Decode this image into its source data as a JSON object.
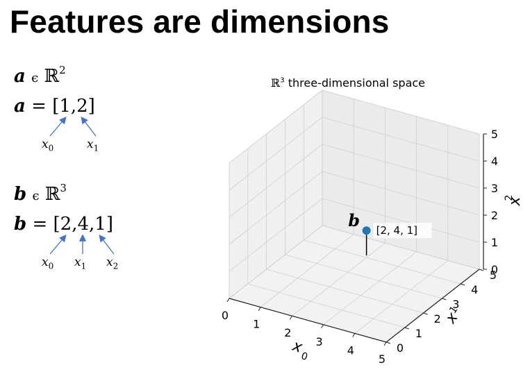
{
  "title": "Features are dimensions",
  "vector_a": {
    "set_line": {
      "name": "a",
      "in": "ϵ",
      "space": "ℝ",
      "dim": "2"
    },
    "value_line": {
      "name": "a",
      "eq": "=",
      "value": "[1,2]"
    },
    "labels": [
      {
        "var": "x",
        "sub": "0"
      },
      {
        "var": "x",
        "sub": "1"
      }
    ]
  },
  "vector_b": {
    "set_line": {
      "name": "b",
      "in": "ϵ",
      "space": "ℝ",
      "dim": "3"
    },
    "value_line": {
      "name": "b",
      "eq": "=",
      "value": "[2,4,1]"
    },
    "labels": [
      {
        "var": "x",
        "sub": "0"
      },
      {
        "var": "x",
        "sub": "1"
      },
      {
        "var": "x",
        "sub": "2"
      }
    ]
  },
  "plot": {
    "title_space": "ℝ",
    "title_dim": "3",
    "title_text": "three-dimensional space",
    "x_ticks": [
      "0",
      "1",
      "2",
      "3",
      "4",
      "5"
    ],
    "y_ticks": [
      "0",
      "1",
      "2",
      "3",
      "4",
      "5"
    ],
    "z_ticks": [
      "0",
      "1",
      "2",
      "3",
      "4",
      "5"
    ],
    "x_label": "x",
    "x_label_sub": "0",
    "y_label": "x",
    "y_label_sub": "1",
    "z_label": "x",
    "z_label_sub": "2",
    "point": {
      "name": "b",
      "x": 2,
      "y": 4,
      "z": 1,
      "label": "[2, 4, 1]",
      "color": "#1f77b4"
    }
  }
}
